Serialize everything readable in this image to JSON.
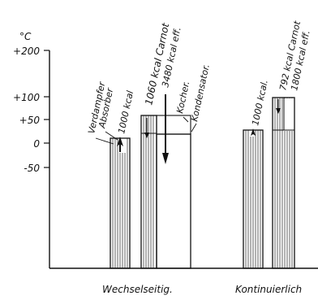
{
  "axis": {
    "unit": "°C",
    "ticks": [
      "+200",
      "+100",
      "+50",
      "0",
      "-50"
    ]
  },
  "labels": {
    "verdampfer": "Verdampfer",
    "absorber": "Absorber",
    "w_heat1": "1000 kcal",
    "w_carnot": "1060 kcal Carnot",
    "w_eff": "3480 kcal eff.",
    "kocher": "Kocher.",
    "kondensator": "Kondensator.",
    "k_heat1": "1000 kcal.",
    "k_carnot": "792 kcal Carnot",
    "k_eff": "1800 kcal eff."
  },
  "groups": {
    "wechsel": "Wechselseitig.",
    "kontinuierlich": "Kontinuierlich"
  }
}
